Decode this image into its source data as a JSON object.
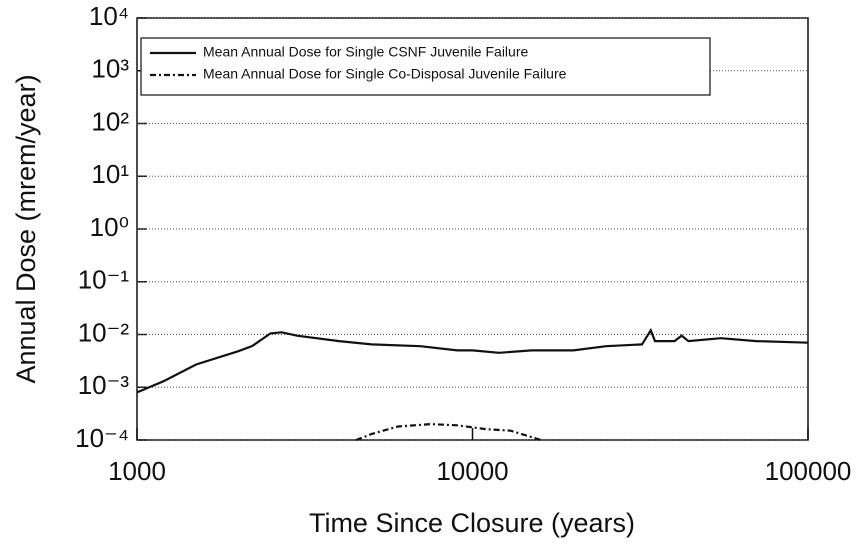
{
  "chart_data": {
    "type": "line",
    "xlabel": "Time Since Closure (years)",
    "ylabel": "Annual Dose (mrem/year)",
    "xscale": "log",
    "yscale": "log",
    "xlim": [
      1000,
      100000
    ],
    "xticks": [
      1000,
      10000,
      100000
    ],
    "ylim": [
      0.0001,
      10000
    ],
    "yticks": [
      {
        "value": 0.0001,
        "label": "10⁻⁴"
      },
      {
        "value": 0.001,
        "label": "10⁻³"
      },
      {
        "value": 0.01,
        "label": "10⁻²"
      },
      {
        "value": 0.1,
        "label": "10⁻¹"
      },
      {
        "value": 1,
        "label": "10⁰"
      },
      {
        "value": 10,
        "label": "10¹"
      },
      {
        "value": 100,
        "label": "10²"
      },
      {
        "value": 1000,
        "label": "10³"
      },
      {
        "value": 10000,
        "label": "10⁴"
      }
    ],
    "grid": true,
    "legend": "upper left",
    "series": [
      {
        "name": "Mean Annual Dose for Single CSNF Juvenile Failure",
        "color": "#111111",
        "dash": "solid",
        "x": [
          1000,
          1200,
          1500,
          2000,
          2200,
          2500,
          2700,
          3000,
          4000,
          5000,
          7000,
          9000,
          10000,
          12000,
          15000,
          20000,
          25000,
          32000,
          34000,
          35000,
          40000,
          42000,
          44000,
          55000,
          70000,
          100000
        ],
        "values": [
          0.0008,
          0.0013,
          0.0027,
          0.0048,
          0.006,
          0.0105,
          0.011,
          0.0095,
          0.0075,
          0.0065,
          0.006,
          0.005,
          0.005,
          0.0045,
          0.005,
          0.005,
          0.006,
          0.0065,
          0.012,
          0.0075,
          0.0075,
          0.0095,
          0.0075,
          0.0085,
          0.0075,
          0.007
        ]
      },
      {
        "name": "Mean Annual Dose for Single Co-Disposal Juvenile Failure",
        "color": "#111111",
        "dash": "dashdot",
        "x": [
          4500,
          5000,
          6000,
          7500,
          9000,
          11000,
          13000,
          16000
        ],
        "values": [
          0.0001,
          0.00013,
          0.00018,
          0.0002,
          0.00019,
          0.00016,
          0.00015,
          0.0001
        ]
      }
    ]
  }
}
